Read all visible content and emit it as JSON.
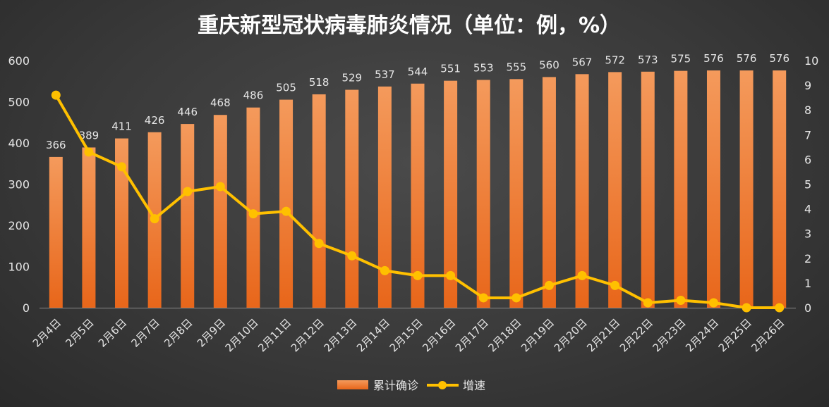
{
  "chart_data": {
    "type": "bar",
    "title": "重庆新型冠状病毒肺炎情况（单位：例，%）",
    "categories": [
      "2月4日",
      "2月5日",
      "2月6日",
      "2月7日",
      "2月8日",
      "2月9日",
      "2月10日",
      "2月11日",
      "2月12日",
      "2月13日",
      "2月14日",
      "2月15日",
      "2月16日",
      "2月17日",
      "2月18日",
      "2月19日",
      "2月20日",
      "2月21日",
      "2月22日",
      "2月23日",
      "2月24日",
      "2月25日",
      "2月26日"
    ],
    "series": [
      {
        "name": "累计确诊",
        "type": "bar",
        "axis": "left",
        "color": "#f07a2a",
        "values": [
          366,
          389,
          411,
          426,
          446,
          468,
          486,
          505,
          518,
          529,
          537,
          544,
          551,
          553,
          555,
          560,
          567,
          572,
          573,
          575,
          576,
          576,
          576
        ]
      },
      {
        "name": "增速",
        "type": "line",
        "axis": "right",
        "color": "#ffc000",
        "values": [
          8.6,
          6.3,
          5.7,
          3.6,
          4.7,
          4.9,
          3.8,
          3.9,
          2.6,
          2.1,
          1.5,
          1.3,
          1.3,
          0.4,
          0.4,
          0.9,
          1.3,
          0.9,
          0.2,
          0.3,
          0.2,
          0.0,
          0.0
        ]
      }
    ],
    "y_left": {
      "min": 0,
      "max": 600,
      "ticks": [
        0,
        100,
        200,
        300,
        400,
        500,
        600
      ]
    },
    "y_right": {
      "min": 0,
      "max": 10,
      "ticks": [
        0,
        1,
        2,
        3,
        4,
        5,
        6,
        7,
        8,
        9,
        10
      ]
    },
    "grid": false,
    "legend": "bottom-center",
    "bar_data_labels": true
  }
}
